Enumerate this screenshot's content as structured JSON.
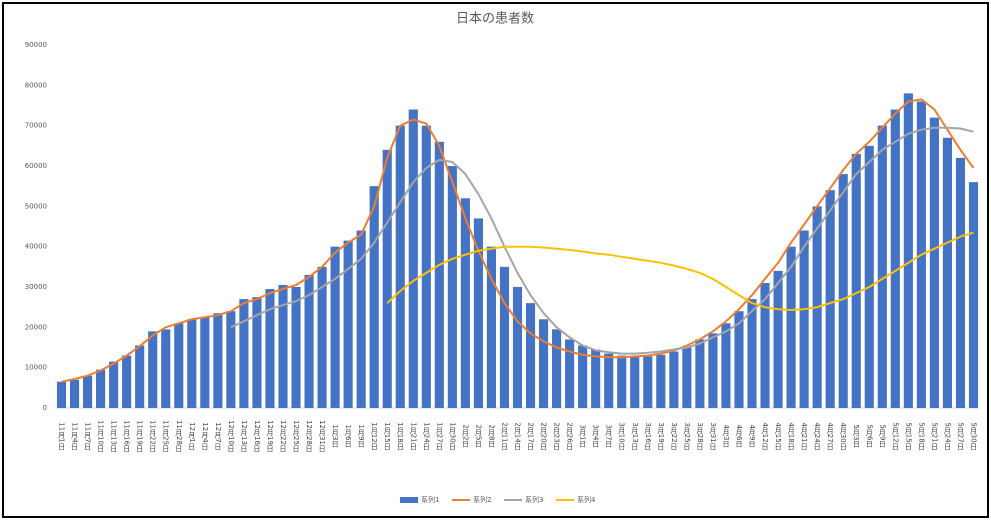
{
  "chart_data": {
    "type": "bar-line",
    "title": "日本の患者数",
    "categories": [
      "11月1日",
      "11月4日",
      "11月7日",
      "11月10日",
      "11月13日",
      "11月16日",
      "11月19日",
      "11月22日",
      "11月25日",
      "11月28日",
      "12月1日",
      "12月4日",
      "12月7日",
      "12月10日",
      "12月13日",
      "12月16日",
      "12月19日",
      "12月22日",
      "12月25日",
      "12月28日",
      "12月31日",
      "1月3日",
      "1月6日",
      "1月9日",
      "1月12日",
      "1月15日",
      "1月18日",
      "1月21日",
      "1月24日",
      "1月27日",
      "1月30日",
      "2月2日",
      "2月5日",
      "2月8日",
      "2月11日",
      "2月14日",
      "2月17日",
      "2月20日",
      "2月23日",
      "2月26日",
      "3月1日",
      "3月4日",
      "3月7日",
      "3月10日",
      "3月13日",
      "3月16日",
      "3月19日",
      "3月22日",
      "3月25日",
      "3月28日",
      "3月31日",
      "4月3日",
      "4月6日",
      "4月9日",
      "4月12日",
      "4月15日",
      "4月18日",
      "4月21日",
      "4月24日",
      "4月27日",
      "4月30日",
      "5月3日",
      "5月6日",
      "5月9日",
      "5月12日",
      "5月15日",
      "5月18日",
      "5月21日",
      "5月24日",
      "5月27日",
      "5月30日"
    ],
    "series": [
      {
        "name": "系列1",
        "kind": "bar",
        "color": "#4472c4",
        "values": [
          6500,
          7000,
          8000,
          9500,
          11500,
          13000,
          15500,
          19000,
          19500,
          21000,
          22000,
          22500,
          23500,
          24000,
          27000,
          27500,
          29500,
          30500,
          30000,
          33000,
          35000,
          40000,
          41500,
          44000,
          55000,
          64000,
          70000,
          74000,
          70000,
          66000,
          60000,
          52000,
          47000,
          40000,
          35000,
          30000,
          26000,
          22000,
          19500,
          17000,
          15500,
          14500,
          13500,
          13000,
          12800,
          12800,
          13200,
          14000,
          15000,
          17000,
          18500,
          21000,
          24000,
          27000,
          31000,
          34000,
          40000,
          44000,
          50000,
          54000,
          58000,
          63000,
          65000,
          70000,
          74000,
          78000,
          76000,
          72000,
          67000,
          62000,
          56000
        ]
      },
      {
        "name": "系列2",
        "kind": "line",
        "color": "#ed7d31",
        "values": [
          6500,
          7200,
          8000,
          9300,
          11000,
          13000,
          15300,
          18000,
          20000,
          21000,
          22000,
          22500,
          23000,
          24000,
          26000,
          27000,
          28500,
          29500,
          30500,
          32500,
          35000,
          38500,
          41000,
          43000,
          50000,
          62000,
          70000,
          71500,
          70500,
          65000,
          56000,
          47000,
          39000,
          32000,
          26000,
          21500,
          18500,
          16500,
          15000,
          14000,
          13200,
          12800,
          12600,
          12600,
          12800,
          13000,
          13500,
          14200,
          15500,
          17000,
          19000,
          21500,
          24500,
          28000,
          32000,
          36000,
          41000,
          45500,
          50000,
          54500,
          59000,
          63000,
          66000,
          69500,
          73000,
          76000,
          76500,
          74000,
          69000,
          64000,
          59500
        ]
      },
      {
        "name": "系列3",
        "kind": "line",
        "color": "#a5a5a5",
        "values": [
          null,
          null,
          null,
          null,
          null,
          null,
          null,
          null,
          null,
          null,
          null,
          null,
          null,
          20000,
          21500,
          23000,
          24500,
          25500,
          26500,
          28000,
          30000,
          32000,
          34500,
          37000,
          41000,
          46000,
          51000,
          56000,
          59500,
          61500,
          61000,
          58000,
          53000,
          47000,
          40000,
          33500,
          28000,
          23500,
          20000,
          17500,
          15500,
          14300,
          13800,
          13500,
          13500,
          13700,
          14000,
          14500,
          15000,
          16000,
          17500,
          19000,
          21000,
          24000,
          27000,
          31000,
          35000,
          40000,
          44500,
          49000,
          53500,
          58000,
          61000,
          64000,
          66000,
          68000,
          69000,
          69500,
          69500,
          69300,
          68500
        ]
      },
      {
        "name": "系列4",
        "kind": "line",
        "color": "#ffc000",
        "values": [
          null,
          null,
          null,
          null,
          null,
          null,
          null,
          null,
          null,
          null,
          null,
          null,
          null,
          null,
          null,
          null,
          null,
          null,
          null,
          null,
          null,
          null,
          null,
          null,
          null,
          26000,
          29000,
          31500,
          33500,
          35500,
          37000,
          38000,
          39000,
          39500,
          40000,
          40000,
          40000,
          39800,
          39500,
          39200,
          38800,
          38300,
          38000,
          37500,
          37000,
          36500,
          36000,
          35300,
          34500,
          33500,
          32000,
          30000,
          28000,
          26000,
          25000,
          24500,
          24300,
          24500,
          25000,
          26000,
          27000,
          28500,
          30000,
          32000,
          34000,
          36000,
          38000,
          39500,
          41000,
          42500,
          43500
        ]
      }
    ],
    "ylim": [
      0,
      90000
    ],
    "yticks": [
      0,
      10000,
      20000,
      30000,
      40000,
      50000,
      60000,
      70000,
      80000,
      90000
    ],
    "grid": false,
    "legend": "bottom"
  }
}
